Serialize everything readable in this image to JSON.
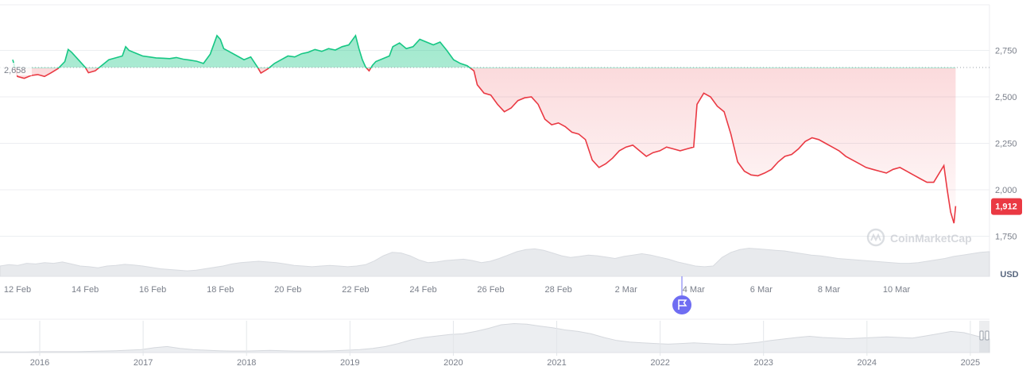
{
  "chart_data": {
    "type": "area",
    "currency_label": "USD",
    "watermark": "CoinMarketCap",
    "baseline": {
      "value": 2658,
      "label": "2,658"
    },
    "current": {
      "value": 1912,
      "label": "1,912"
    },
    "y_ticks": [
      {
        "value": 1750,
        "label": "1,750"
      },
      {
        "value": 2000,
        "label": "2,000"
      },
      {
        "value": 2250,
        "label": "2,250"
      },
      {
        "value": 2500,
        "label": "2,500"
      },
      {
        "value": 2750,
        "label": "2,750"
      }
    ],
    "ylim": [
      1705,
      3000
    ],
    "x_ticks": [
      {
        "day": 0,
        "label": "12 Feb"
      },
      {
        "day": 2,
        "label": "14 Feb"
      },
      {
        "day": 4,
        "label": "16 Feb"
      },
      {
        "day": 6,
        "label": "18 Feb"
      },
      {
        "day": 8,
        "label": "20 Feb"
      },
      {
        "day": 10,
        "label": "22 Feb"
      },
      {
        "day": 12,
        "label": "24 Feb"
      },
      {
        "day": 14,
        "label": "26 Feb"
      },
      {
        "day": 16,
        "label": "28 Feb"
      },
      {
        "day": 18,
        "label": "2 Mar"
      },
      {
        "day": 20,
        "label": "4 Mar"
      },
      {
        "day": 22,
        "label": "6 Mar"
      },
      {
        "day": 24,
        "label": "8 Mar"
      },
      {
        "day": 26,
        "label": "10 Mar"
      }
    ],
    "xlim": [
      -0.14,
      27.75
    ],
    "colors": {
      "up": "#16c784",
      "down": "#ea3943",
      "badge": "#ea3943",
      "marker": "#6f6df2"
    },
    "series": [
      {
        "points": [
          [
            -0.14,
            2700
          ],
          [
            0.0,
            2610
          ],
          [
            0.2,
            2600
          ],
          [
            0.4,
            2615
          ],
          [
            0.6,
            2620
          ],
          [
            0.8,
            2610
          ],
          [
            1.0,
            2630
          ],
          [
            1.2,
            2652
          ],
          [
            1.4,
            2690
          ],
          [
            1.5,
            2755
          ],
          [
            1.6,
            2740
          ],
          [
            1.8,
            2700
          ],
          [
            2.0,
            2660
          ],
          [
            2.1,
            2630
          ],
          [
            2.3,
            2640
          ],
          [
            2.5,
            2670
          ],
          [
            2.7,
            2700
          ],
          [
            2.9,
            2710
          ],
          [
            3.1,
            2720
          ],
          [
            3.2,
            2770
          ],
          [
            3.3,
            2750
          ],
          [
            3.5,
            2735
          ],
          [
            3.7,
            2720
          ],
          [
            3.9,
            2715
          ],
          [
            4.1,
            2710
          ],
          [
            4.3,
            2708
          ],
          [
            4.5,
            2706
          ],
          [
            4.7,
            2712
          ],
          [
            4.9,
            2703
          ],
          [
            5.1,
            2698
          ],
          [
            5.3,
            2692
          ],
          [
            5.5,
            2680
          ],
          [
            5.7,
            2730
          ],
          [
            5.9,
            2830
          ],
          [
            6.0,
            2810
          ],
          [
            6.1,
            2760
          ],
          [
            6.3,
            2740
          ],
          [
            6.5,
            2720
          ],
          [
            6.7,
            2700
          ],
          [
            6.9,
            2715
          ],
          [
            7.1,
            2660
          ],
          [
            7.2,
            2628
          ],
          [
            7.4,
            2650
          ],
          [
            7.6,
            2680
          ],
          [
            7.8,
            2700
          ],
          [
            8.0,
            2720
          ],
          [
            8.2,
            2715
          ],
          [
            8.4,
            2732
          ],
          [
            8.6,
            2740
          ],
          [
            8.8,
            2755
          ],
          [
            9.0,
            2745
          ],
          [
            9.2,
            2760
          ],
          [
            9.4,
            2752
          ],
          [
            9.6,
            2770
          ],
          [
            9.8,
            2780
          ],
          [
            10.0,
            2830
          ],
          [
            10.1,
            2760
          ],
          [
            10.2,
            2700
          ],
          [
            10.3,
            2660
          ],
          [
            10.4,
            2640
          ],
          [
            10.5,
            2670
          ],
          [
            10.6,
            2690
          ],
          [
            10.8,
            2705
          ],
          [
            11.0,
            2720
          ],
          [
            11.1,
            2770
          ],
          [
            11.3,
            2790
          ],
          [
            11.5,
            2760
          ],
          [
            11.7,
            2770
          ],
          [
            11.9,
            2810
          ],
          [
            12.1,
            2795
          ],
          [
            12.3,
            2780
          ],
          [
            12.5,
            2795
          ],
          [
            12.7,
            2750
          ],
          [
            12.9,
            2700
          ],
          [
            13.1,
            2680
          ],
          [
            13.3,
            2668
          ],
          [
            13.5,
            2640
          ],
          [
            13.6,
            2565
          ],
          [
            13.8,
            2520
          ],
          [
            14.0,
            2510
          ],
          [
            14.2,
            2460
          ],
          [
            14.4,
            2420
          ],
          [
            14.6,
            2440
          ],
          [
            14.8,
            2480
          ],
          [
            15.0,
            2495
          ],
          [
            15.2,
            2500
          ],
          [
            15.4,
            2460
          ],
          [
            15.6,
            2380
          ],
          [
            15.8,
            2350
          ],
          [
            16.0,
            2360
          ],
          [
            16.2,
            2340
          ],
          [
            16.4,
            2310
          ],
          [
            16.6,
            2300
          ],
          [
            16.8,
            2270
          ],
          [
            17.0,
            2160
          ],
          [
            17.2,
            2120
          ],
          [
            17.4,
            2140
          ],
          [
            17.6,
            2170
          ],
          [
            17.8,
            2210
          ],
          [
            18.0,
            2230
          ],
          [
            18.2,
            2240
          ],
          [
            18.4,
            2210
          ],
          [
            18.6,
            2180
          ],
          [
            18.8,
            2200
          ],
          [
            19.0,
            2210
          ],
          [
            19.2,
            2230
          ],
          [
            19.4,
            2220
          ],
          [
            19.6,
            2210
          ],
          [
            19.8,
            2220
          ],
          [
            20.0,
            2230
          ],
          [
            20.1,
            2460
          ],
          [
            20.3,
            2520
          ],
          [
            20.5,
            2500
          ],
          [
            20.7,
            2450
          ],
          [
            20.9,
            2420
          ],
          [
            21.1,
            2300
          ],
          [
            21.3,
            2150
          ],
          [
            21.5,
            2100
          ],
          [
            21.7,
            2080
          ],
          [
            21.9,
            2075
          ],
          [
            22.1,
            2090
          ],
          [
            22.3,
            2110
          ],
          [
            22.5,
            2150
          ],
          [
            22.7,
            2180
          ],
          [
            22.9,
            2190
          ],
          [
            23.1,
            2220
          ],
          [
            23.3,
            2260
          ],
          [
            23.5,
            2280
          ],
          [
            23.7,
            2270
          ],
          [
            23.9,
            2250
          ],
          [
            24.1,
            2230
          ],
          [
            24.3,
            2210
          ],
          [
            24.5,
            2180
          ],
          [
            24.7,
            2160
          ],
          [
            24.9,
            2140
          ],
          [
            25.1,
            2120
          ],
          [
            25.3,
            2110
          ],
          [
            25.5,
            2100
          ],
          [
            25.7,
            2090
          ],
          [
            25.9,
            2110
          ],
          [
            26.1,
            2120
          ],
          [
            26.3,
            2100
          ],
          [
            26.5,
            2080
          ],
          [
            26.7,
            2060
          ],
          [
            26.9,
            2040
          ],
          [
            27.1,
            2040
          ],
          [
            27.3,
            2100
          ],
          [
            27.4,
            2130
          ],
          [
            27.5,
            2000
          ],
          [
            27.6,
            1880
          ],
          [
            27.7,
            1820
          ],
          [
            27.75,
            1912
          ]
        ]
      }
    ],
    "volume_values": [
      0.3,
      0.34,
      0.32,
      0.38,
      0.36,
      0.4,
      0.38,
      0.42,
      0.36,
      0.3,
      0.28,
      0.25,
      0.3,
      0.32,
      0.35,
      0.33,
      0.3,
      0.26,
      0.22,
      0.2,
      0.18,
      0.16,
      0.18,
      0.22,
      0.26,
      0.3,
      0.36,
      0.4,
      0.42,
      0.44,
      0.42,
      0.4,
      0.36,
      0.32,
      0.3,
      0.28,
      0.3,
      0.32,
      0.3,
      0.28,
      0.3,
      0.34,
      0.45,
      0.6,
      0.7,
      0.68,
      0.6,
      0.48,
      0.4,
      0.42,
      0.46,
      0.48,
      0.5,
      0.46,
      0.4,
      0.44,
      0.52,
      0.62,
      0.72,
      0.78,
      0.8,
      0.76,
      0.68,
      0.6,
      0.55,
      0.58,
      0.62,
      0.6,
      0.56,
      0.52,
      0.58,
      0.62,
      0.66,
      0.62,
      0.56,
      0.5,
      0.42,
      0.36,
      0.3,
      0.28,
      0.3,
      0.55,
      0.7,
      0.78,
      0.82,
      0.8,
      0.78,
      0.76,
      0.74,
      0.7,
      0.66,
      0.62,
      0.6,
      0.56,
      0.52,
      0.5,
      0.48,
      0.46,
      0.44,
      0.42,
      0.4,
      0.38,
      0.38,
      0.4,
      0.44,
      0.48,
      0.52,
      0.58,
      0.62,
      0.66,
      0.7,
      0.72
    ],
    "overview": {
      "year_labels": [
        "2016",
        "2017",
        "2018",
        "2019",
        "2020",
        "2021",
        "2022",
        "2023",
        "2024",
        "2025"
      ],
      "values": [
        0.02,
        0.02,
        0.02,
        0.03,
        0.03,
        0.03,
        0.03,
        0.04,
        0.05,
        0.06,
        0.08,
        0.1,
        0.16,
        0.2,
        0.14,
        0.1,
        0.08,
        0.06,
        0.05,
        0.05,
        0.06,
        0.07,
        0.06,
        0.05,
        0.05,
        0.05,
        0.06,
        0.08,
        0.1,
        0.14,
        0.2,
        0.3,
        0.42,
        0.5,
        0.55,
        0.6,
        0.62,
        0.7,
        0.8,
        0.92,
        0.96,
        0.94,
        0.88,
        0.82,
        0.75,
        0.7,
        0.62,
        0.5,
        0.4,
        0.35,
        0.32,
        0.3,
        0.28,
        0.3,
        0.32,
        0.3,
        0.28,
        0.27,
        0.3,
        0.34,
        0.4,
        0.45,
        0.5,
        0.54,
        0.5,
        0.48,
        0.46,
        0.48,
        0.5,
        0.52,
        0.5,
        0.48,
        0.55,
        0.62,
        0.7,
        0.66,
        0.55,
        0.45
      ]
    }
  }
}
